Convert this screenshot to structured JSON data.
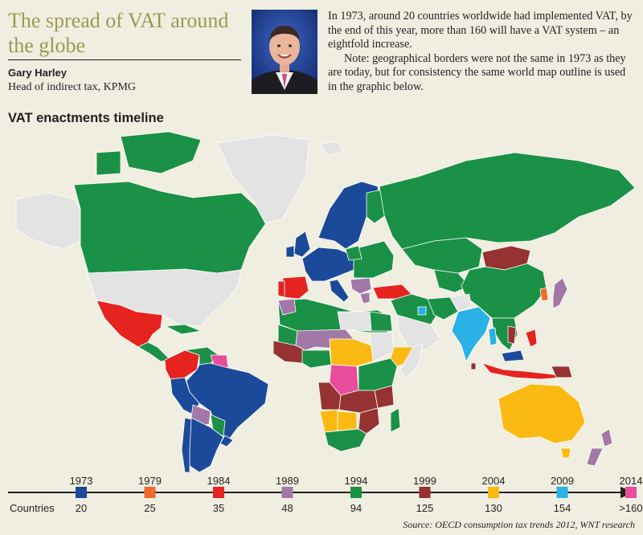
{
  "header": {
    "title": "The spread of VAT around the globe",
    "author_name": "Gary Harley",
    "author_role": "Head of indirect tax, KPMG",
    "intro": "In 1973, around 20 countries worldwide had implemented VAT, by the end of this year, more than 160 will have a VAT system – an eightfold increase.",
    "note": "Note: geographical borders were not the same in 1973 as they are today, but for consistency the same world map outline is used in the graphic below."
  },
  "map": {
    "title": "VAT enactments timeline",
    "colors": {
      "none": "#e3e3e3",
      "y1973": "#1b4a9a",
      "y1979": "#ec6b2d",
      "y1984": "#e5231f",
      "y1989": "#a278a8",
      "y1994": "#1a9146",
      "y1999": "#963231",
      "y2004": "#fbba13",
      "y2009": "#2ab1e5",
      "y2014": "#e84c9b"
    }
  },
  "timeline": {
    "axis_label": "Countries",
    "entries": [
      {
        "year": "1973",
        "count": "20",
        "color": "#1b4a9a"
      },
      {
        "year": "1979",
        "count": "25",
        "color": "#ec6b2d"
      },
      {
        "year": "1984",
        "count": "35",
        "color": "#e5231f"
      },
      {
        "year": "1989",
        "count": "48",
        "color": "#a278a8"
      },
      {
        "year": "1994",
        "count": "94",
        "color": "#1a9146"
      },
      {
        "year": "1999",
        "count": "125",
        "color": "#963231"
      },
      {
        "year": "2004",
        "count": "130",
        "color": "#fbba13"
      },
      {
        "year": "2009",
        "count": "154",
        "color": "#2ab1e5"
      },
      {
        "year": "2014",
        "count": ">160",
        "color": "#e84c9b"
      }
    ]
  },
  "source": "Source: OECD consumption tax trends 2012, WNT research"
}
